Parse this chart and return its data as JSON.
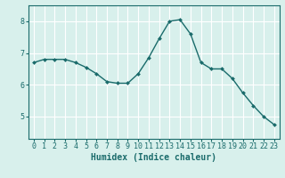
{
  "x": [
    0,
    1,
    2,
    3,
    4,
    5,
    6,
    7,
    8,
    9,
    10,
    11,
    12,
    13,
    14,
    15,
    16,
    17,
    18,
    19,
    20,
    21,
    22,
    23
  ],
  "y": [
    6.7,
    6.8,
    6.8,
    6.8,
    6.7,
    6.55,
    6.35,
    6.1,
    6.05,
    6.05,
    6.35,
    6.85,
    7.45,
    8.0,
    8.05,
    7.6,
    6.7,
    6.5,
    6.5,
    6.2,
    5.75,
    5.35,
    5.0,
    4.75
  ],
  "line_color": "#1a6b6b",
  "marker": "D",
  "marker_size": 2.0,
  "linewidth": 1.0,
  "bg_color": "#d8f0ec",
  "grid_color": "#ffffff",
  "xlabel": "Humidex (Indice chaleur)",
  "xlabel_fontsize": 7,
  "tick_fontsize": 6,
  "yticks": [
    5,
    6,
    7,
    8
  ],
  "xticks": [
    0,
    1,
    2,
    3,
    4,
    5,
    6,
    7,
    8,
    9,
    10,
    11,
    12,
    13,
    14,
    15,
    16,
    17,
    18,
    19,
    20,
    21,
    22,
    23
  ],
  "ylim": [
    4.3,
    8.5
  ],
  "xlim": [
    -0.5,
    23.5
  ]
}
